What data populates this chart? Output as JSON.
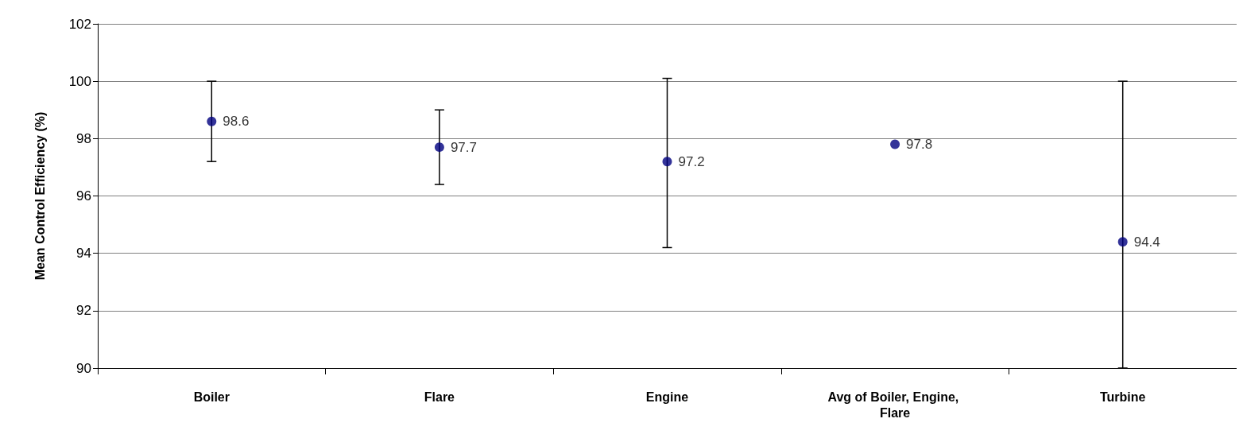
{
  "chart_data": {
    "type": "scatter",
    "ylabel": "Mean Control Efficiency (%)",
    "categories": [
      "Boiler",
      "Flare",
      "Engine",
      "Avg of Boiler, Engine, Flare",
      "Turbine"
    ],
    "values": [
      98.6,
      97.7,
      97.2,
      97.8,
      94.4
    ],
    "errors": [
      [
        97.2,
        100.0
      ],
      [
        96.4,
        99.0
      ],
      [
        94.2,
        100.1
      ],
      null,
      [
        90,
        100.0
      ]
    ],
    "color": "#000080",
    "marker": "circle",
    "data_labels": true,
    "grid": "y",
    "ylim": [
      90,
      102
    ],
    "yticks": [
      90,
      92,
      94,
      96,
      98,
      100,
      102
    ]
  }
}
